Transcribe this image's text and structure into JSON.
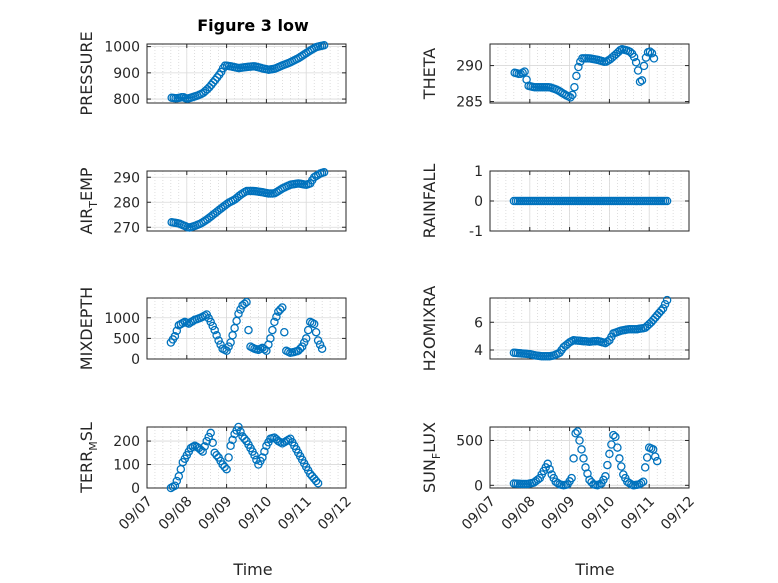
{
  "figure": {
    "title": "Figure 3 low",
    "xlabel": "Time",
    "x_ticks": [
      "09/07",
      "09/08",
      "09/09",
      "09/10",
      "09/11",
      "09/12"
    ],
    "x_tick_values": [
      0,
      1,
      2,
      3,
      4,
      5
    ],
    "colors": {
      "marker": "#0072bd",
      "axis": "#262626",
      "grid": "#bdbdbd"
    }
  },
  "chart_data": [
    {
      "type": "scatter",
      "ylabel": "PRESSURE",
      "ylim": [
        785,
        1010
      ],
      "yticks": [
        800,
        900,
        1000
      ],
      "grid": true,
      "keypoints": [
        [
          0.62,
          805
        ],
        [
          0.75,
          803
        ],
        [
          0.9,
          808
        ],
        [
          1.0,
          801
        ],
        [
          1.1,
          805
        ],
        [
          1.25,
          812
        ],
        [
          1.4,
          822
        ],
        [
          1.55,
          842
        ],
        [
          1.7,
          870
        ],
        [
          1.85,
          900
        ],
        [
          1.95,
          928
        ],
        [
          2.1,
          925
        ],
        [
          2.3,
          918
        ],
        [
          2.5,
          922
        ],
        [
          2.7,
          925
        ],
        [
          2.9,
          917
        ],
        [
          3.05,
          912
        ],
        [
          3.2,
          915
        ],
        [
          3.4,
          928
        ],
        [
          3.6,
          940
        ],
        [
          3.8,
          955
        ],
        [
          3.95,
          970
        ],
        [
          4.1,
          985
        ],
        [
          4.25,
          998
        ],
        [
          4.35,
          1002
        ],
        [
          4.45,
          1005
        ]
      ]
    },
    {
      "type": "scatter",
      "ylabel": "THETA",
      "ylim": [
        284.8,
        293
      ],
      "yticks": [
        285,
        290
      ],
      "grid": true,
      "keypoints": [
        [
          0.62,
          289.0
        ],
        [
          0.75,
          288.8
        ],
        [
          0.88,
          289.2
        ],
        [
          0.95,
          287.2
        ],
        [
          1.1,
          287.0
        ],
        [
          1.3,
          287.0
        ],
        [
          1.5,
          287.0
        ],
        [
          1.7,
          286.6
        ],
        [
          1.9,
          285.9
        ],
        [
          2.05,
          285.5
        ],
        [
          2.12,
          287.0
        ],
        [
          2.2,
          289.5
        ],
        [
          2.3,
          291.0
        ],
        [
          2.5,
          291.0
        ],
        [
          2.7,
          290.8
        ],
        [
          2.9,
          290.5
        ],
        [
          3.0,
          290.8
        ],
        [
          3.15,
          291.5
        ],
        [
          3.3,
          292.3
        ],
        [
          3.5,
          292.0
        ],
        [
          3.6,
          291.5
        ],
        [
          3.7,
          290.0
        ],
        [
          3.75,
          288.3
        ],
        [
          3.8,
          286.9
        ],
        [
          3.85,
          289.5
        ],
        [
          3.95,
          291.8
        ],
        [
          4.05,
          292.0
        ],
        [
          4.12,
          291.0
        ]
      ]
    },
    {
      "type": "scatter",
      "ylabel": "AIR_TEMP",
      "ylabel_parts": {
        "base": "AIR",
        "sub": "T",
        "rest": "EMP"
      },
      "ylim": [
        268.5,
        292.5
      ],
      "yticks": [
        270,
        280,
        290
      ],
      "grid": true,
      "keypoints": [
        [
          0.62,
          272.0
        ],
        [
          0.8,
          271.5
        ],
        [
          0.95,
          270.5
        ],
        [
          1.05,
          269.8
        ],
        [
          1.2,
          270.5
        ],
        [
          1.35,
          271.5
        ],
        [
          1.5,
          273.0
        ],
        [
          1.7,
          275.5
        ],
        [
          1.9,
          278.0
        ],
        [
          2.05,
          279.8
        ],
        [
          2.2,
          281.0
        ],
        [
          2.35,
          283.0
        ],
        [
          2.5,
          284.5
        ],
        [
          2.7,
          284.5
        ],
        [
          2.9,
          284.0
        ],
        [
          3.05,
          283.5
        ],
        [
          3.2,
          283.5
        ],
        [
          3.4,
          285.5
        ],
        [
          3.6,
          287.0
        ],
        [
          3.8,
          287.5
        ],
        [
          4.0,
          287.0
        ],
        [
          4.1,
          287.5
        ],
        [
          4.2,
          290.0
        ],
        [
          4.35,
          291.5
        ],
        [
          4.45,
          292.0
        ]
      ]
    },
    {
      "type": "scatter",
      "ylabel": "RAINFALL",
      "ylim": [
        -1,
        1
      ],
      "yticks": [
        -1,
        0,
        1
      ],
      "grid": true,
      "keypoints": [
        [
          0.6,
          0
        ],
        [
          4.45,
          0
        ]
      ]
    },
    {
      "type": "scatter",
      "ylabel": "MIXDEPTH",
      "ylim": [
        0,
        1480
      ],
      "yticks": [
        0,
        500,
        1000
      ],
      "grid": true,
      "keypoints": [
        [
          0.6,
          400
        ],
        [
          0.7,
          550
        ],
        [
          0.8,
          820
        ],
        [
          0.95,
          900
        ],
        [
          1.05,
          860
        ],
        [
          1.2,
          950
        ],
        [
          1.35,
          1000
        ],
        [
          1.5,
          1080
        ],
        [
          1.6,
          900
        ],
        [
          1.7,
          700
        ],
        [
          1.8,
          450
        ],
        [
          1.9,
          250
        ],
        [
          2.0,
          200
        ],
        [
          2.1,
          400
        ],
        [
          2.2,
          750
        ],
        [
          2.3,
          1100
        ],
        [
          2.4,
          1300
        ],
        [
          2.5,
          1380
        ],
        [
          2.55,
          700
        ],
        [
          2.6,
          300
        ],
        [
          2.7,
          250
        ],
        [
          2.8,
          220
        ],
        [
          2.9,
          270
        ],
        [
          3.0,
          200
        ],
        [
          3.1,
          500
        ],
        [
          3.2,
          900
        ],
        [
          3.3,
          1150
        ],
        [
          3.4,
          1250
        ],
        [
          3.45,
          650
        ],
        [
          3.5,
          200
        ],
        [
          3.6,
          150
        ],
        [
          3.7,
          170
        ],
        [
          3.8,
          200
        ],
        [
          3.9,
          300
        ],
        [
          4.0,
          500
        ],
        [
          4.1,
          900
        ],
        [
          4.2,
          850
        ],
        [
          4.3,
          450
        ],
        [
          4.4,
          250
        ]
      ]
    },
    {
      "type": "scatter",
      "ylabel": "H2OMIXRA",
      "ylim": [
        3.35,
        7.75
      ],
      "yticks": [
        4,
        6
      ],
      "grid": true,
      "keypoints": [
        [
          0.6,
          3.8
        ],
        [
          0.8,
          3.75
        ],
        [
          1.0,
          3.7
        ],
        [
          1.15,
          3.6
        ],
        [
          1.3,
          3.55
        ],
        [
          1.5,
          3.55
        ],
        [
          1.6,
          3.6
        ],
        [
          1.75,
          3.8
        ],
        [
          1.85,
          4.2
        ],
        [
          2.0,
          4.55
        ],
        [
          2.1,
          4.7
        ],
        [
          2.3,
          4.65
        ],
        [
          2.5,
          4.6
        ],
        [
          2.7,
          4.65
        ],
        [
          2.9,
          4.5
        ],
        [
          3.0,
          4.7
        ],
        [
          3.1,
          5.2
        ],
        [
          3.3,
          5.4
        ],
        [
          3.5,
          5.5
        ],
        [
          3.7,
          5.5
        ],
        [
          3.9,
          5.6
        ],
        [
          4.05,
          6.0
        ],
        [
          4.2,
          6.5
        ],
        [
          4.35,
          7.0
        ],
        [
          4.45,
          7.6
        ]
      ]
    },
    {
      "type": "scatter",
      "ylabel": "TERR_MSL",
      "ylabel_parts": {
        "base": "TERR",
        "sub": "M",
        "rest": "SL"
      },
      "ylim": [
        0,
        260
      ],
      "yticks": [
        0,
        100,
        200
      ],
      "grid": true,
      "keypoints": [
        [
          0.6,
          0
        ],
        [
          0.7,
          10
        ],
        [
          0.8,
          50
        ],
        [
          0.9,
          110
        ],
        [
          1.0,
          140
        ],
        [
          1.1,
          170
        ],
        [
          1.2,
          180
        ],
        [
          1.3,
          170
        ],
        [
          1.4,
          155
        ],
        [
          1.5,
          200
        ],
        [
          1.6,
          235
        ],
        [
          1.7,
          150
        ],
        [
          1.8,
          130
        ],
        [
          1.9,
          100
        ],
        [
          2.0,
          80
        ],
        [
          2.1,
          180
        ],
        [
          2.2,
          230
        ],
        [
          2.3,
          260
        ],
        [
          2.4,
          220
        ],
        [
          2.5,
          200
        ],
        [
          2.6,
          170
        ],
        [
          2.7,
          140
        ],
        [
          2.8,
          100
        ],
        [
          2.9,
          130
        ],
        [
          3.0,
          180
        ],
        [
          3.1,
          210
        ],
        [
          3.2,
          215
        ],
        [
          3.3,
          200
        ],
        [
          3.4,
          190
        ],
        [
          3.5,
          200
        ],
        [
          3.6,
          210
        ],
        [
          3.7,
          180
        ],
        [
          3.8,
          150
        ],
        [
          3.9,
          120
        ],
        [
          4.0,
          90
        ],
        [
          4.1,
          60
        ],
        [
          4.2,
          40
        ],
        [
          4.3,
          20
        ]
      ]
    },
    {
      "type": "scatter",
      "ylabel": "SUN_FLUX",
      "ylabel_parts": {
        "base": "SUN",
        "sub": "F",
        "rest": "LUX"
      },
      "ylim": [
        -30,
        650
      ],
      "yticks": [
        0,
        500
      ],
      "grid": true,
      "keypoints": [
        [
          0.6,
          20
        ],
        [
          0.8,
          15
        ],
        [
          0.95,
          15
        ],
        [
          1.1,
          30
        ],
        [
          1.25,
          80
        ],
        [
          1.35,
          160
        ],
        [
          1.45,
          240
        ],
        [
          1.55,
          120
        ],
        [
          1.65,
          40
        ],
        [
          1.75,
          10
        ],
        [
          1.85,
          0
        ],
        [
          1.95,
          10
        ],
        [
          2.05,
          80
        ],
        [
          2.1,
          300
        ],
        [
          2.15,
          580
        ],
        [
          2.2,
          600
        ],
        [
          2.3,
          400
        ],
        [
          2.4,
          200
        ],
        [
          2.5,
          60
        ],
        [
          2.6,
          10
        ],
        [
          2.7,
          0
        ],
        [
          2.8,
          20
        ],
        [
          2.9,
          100
        ],
        [
          3.0,
          350
        ],
        [
          3.1,
          560
        ],
        [
          3.15,
          540
        ],
        [
          3.25,
          300
        ],
        [
          3.35,
          120
        ],
        [
          3.45,
          40
        ],
        [
          3.55,
          10
        ],
        [
          3.6,
          0
        ],
        [
          3.75,
          10
        ],
        [
          3.85,
          40
        ],
        [
          3.9,
          200
        ],
        [
          4.0,
          420
        ],
        [
          4.1,
          400
        ],
        [
          4.15,
          320
        ],
        [
          4.2,
          270
        ]
      ]
    }
  ]
}
